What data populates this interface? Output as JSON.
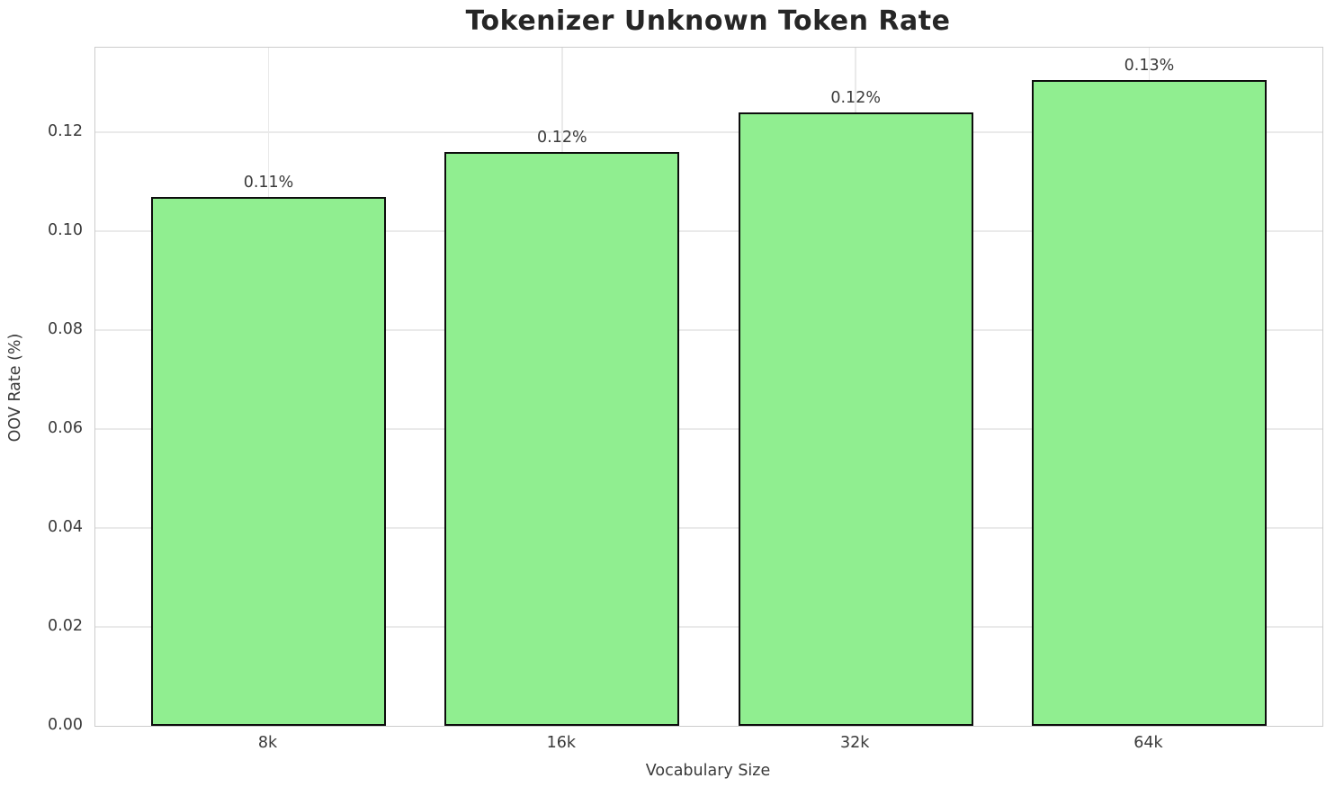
{
  "chart_data": {
    "type": "bar",
    "title": "Tokenizer Unknown Token Rate",
    "xlabel": "Vocabulary Size",
    "ylabel": "OOV Rate (%)",
    "categories": [
      "8k",
      "16k",
      "32k",
      "64k"
    ],
    "values": [
      0.107,
      0.116,
      0.124,
      0.1305
    ],
    "bar_labels": [
      "0.11%",
      "0.12%",
      "0.12%",
      "0.13%"
    ],
    "yticks": [
      0.0,
      0.02,
      0.04,
      0.06,
      0.08,
      0.1,
      0.12
    ],
    "ytick_labels": [
      "0.00",
      "0.02",
      "0.04",
      "0.06",
      "0.08",
      "0.10",
      "0.12"
    ],
    "ylim": [
      0,
      0.1371
    ],
    "grid": "on",
    "legend": "none",
    "colors": {
      "bar_fill": "#90EE90",
      "bar_edge": "#0d0d0d",
      "grid": "#eaeaea",
      "spine": "#cccccc",
      "tick_text": "#3a3a3a",
      "title_text": "#262626",
      "label_text": "#3a3a3a"
    }
  }
}
